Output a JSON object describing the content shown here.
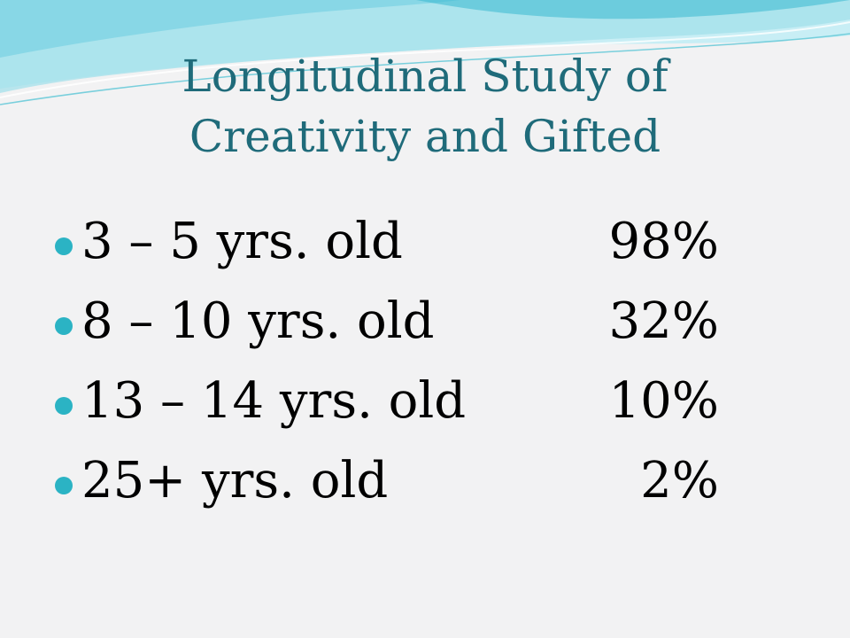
{
  "slide": {
    "title_line1": "Longitudinal Study of",
    "title_line2": "Creativity and Gifted"
  },
  "rows": [
    {
      "label": "3 – 5 yrs. old",
      "value": "98%"
    },
    {
      "label": "8 – 10 yrs. old",
      "value": "32%"
    },
    {
      "label": "13 – 14 yrs. old",
      "value": "10%"
    },
    {
      "label": "25+ yrs. old",
      "value": "2%"
    }
  ],
  "colors": {
    "title": "#1f6b7a",
    "bullet": "#2bb3c4",
    "wave_light": "#c8eef5",
    "wave_mid": "#7fd3e3",
    "wave_dark": "#39b8cf",
    "background": "#f2f2f3"
  }
}
